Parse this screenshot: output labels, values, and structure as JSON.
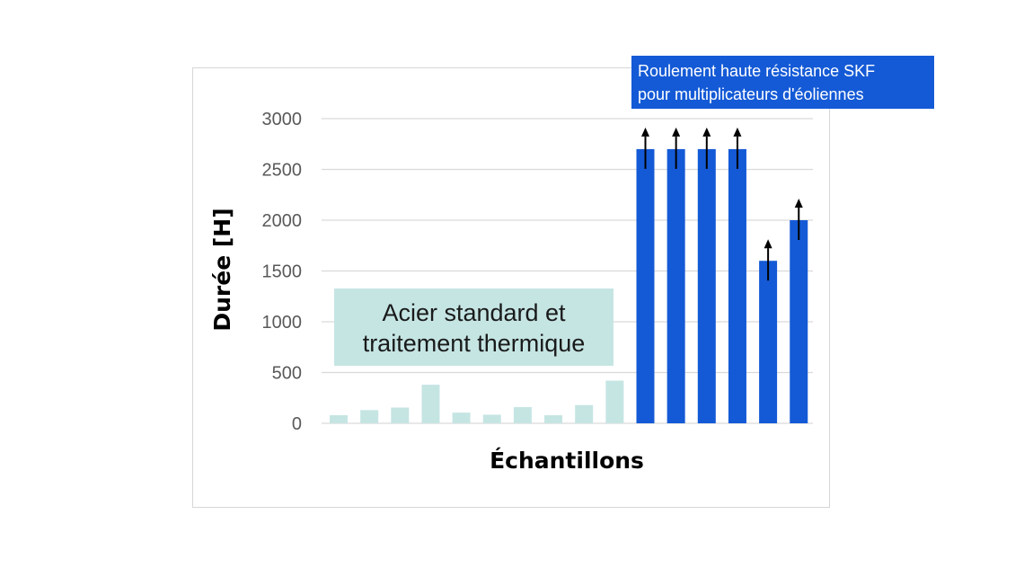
{
  "colors": {
    "standard": "#c5e5e3",
    "skf": "#145ad6",
    "grid": "#d9d9d9",
    "arrow": "#000000"
  },
  "annotations": {
    "standard_box": [
      "Acier standard et",
      "traitement thermique"
    ],
    "skf_box": [
      "Roulement haute résistance SKF",
      "pour multiplicateurs d'éoliennes"
    ]
  },
  "chart_data": {
    "type": "bar",
    "title": "",
    "xlabel": "Échantillons",
    "ylabel": "Durée [H]",
    "ylim": [
      0,
      3000
    ],
    "yticks": [
      0,
      500,
      1000,
      1500,
      2000,
      2500,
      3000
    ],
    "grid": true,
    "legend": "none",
    "series": [
      {
        "name": "Acier standard et traitement thermique",
        "color": "#c5e5e3",
        "values": [
          80,
          130,
          155,
          380,
          105,
          85,
          160,
          80,
          180,
          420
        ],
        "runout": [
          false,
          false,
          false,
          false,
          false,
          false,
          false,
          false,
          false,
          false
        ]
      },
      {
        "name": "Roulement haute résistance SKF pour multiplicateurs d'éoliennes",
        "color": "#145ad6",
        "values": [
          2700,
          2700,
          2700,
          2700,
          1600,
          2000
        ],
        "runout": [
          true,
          true,
          true,
          true,
          true,
          true
        ]
      }
    ]
  }
}
